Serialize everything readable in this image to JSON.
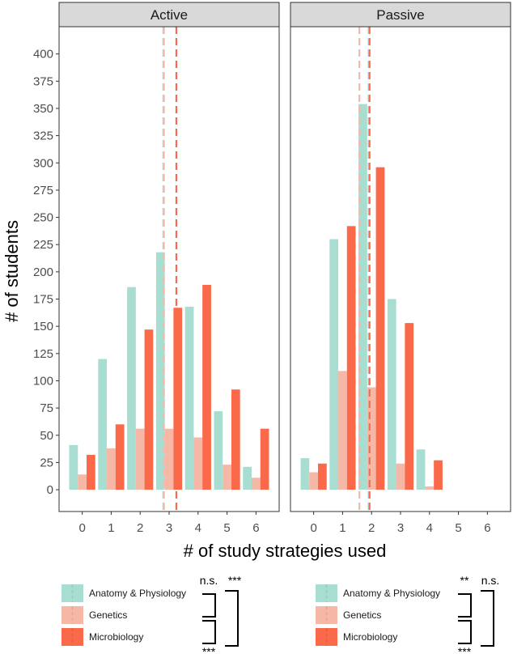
{
  "chart_data": {
    "type": "bar",
    "ylabel": "# of students",
    "xlabel": "# of study strategies used",
    "ylim": [
      -20,
      425
    ],
    "yticks": [
      0,
      25,
      50,
      75,
      100,
      125,
      150,
      175,
      200,
      225,
      250,
      275,
      300,
      325,
      350,
      375,
      400
    ],
    "xticks": [
      0,
      1,
      2,
      3,
      4,
      5,
      6
    ],
    "xlim": [
      -0.8,
      6.8
    ],
    "grid": false,
    "colors": {
      "Anatomy & Physiology": "#A8DDD1",
      "Genetics": "#F6B8A6",
      "Microbiology": "#F9694A"
    },
    "panels": [
      {
        "title": "Active",
        "series": [
          {
            "name": "Anatomy & Physiology",
            "values": [
              41,
              120,
              186,
              218,
              168,
              72,
              21
            ]
          },
          {
            "name": "Genetics",
            "values": [
              14,
              38,
              56,
              56,
              48,
              23,
              11
            ]
          },
          {
            "name": "Microbiology",
            "values": [
              32,
              60,
              147,
              167,
              188,
              92,
              56
            ]
          }
        ],
        "mean_lines": [
          {
            "name": "Anatomy & Physiology",
            "x": 2.8
          },
          {
            "name": "Genetics",
            "x": 2.82
          },
          {
            "name": "Microbiology",
            "x": 3.25
          }
        ]
      },
      {
        "title": "Passive",
        "series": [
          {
            "name": "Anatomy & Physiology",
            "values": [
              29,
              230,
              354,
              175,
              37,
              0,
              0
            ]
          },
          {
            "name": "Genetics",
            "values": [
              16,
              109,
              94,
              24,
              3,
              0,
              0
            ]
          },
          {
            "name": "Microbiology",
            "values": [
              24,
              242,
              296,
              153,
              27,
              0,
              0
            ]
          }
        ],
        "mean_lines": [
          {
            "name": "Anatomy & Physiology",
            "x": 1.9
          },
          {
            "name": "Genetics",
            "x": 1.58
          },
          {
            "name": "Microbiology",
            "x": 1.93
          }
        ]
      }
    ],
    "legends": [
      {
        "items": [
          "Anatomy & Physiology",
          "Genetics",
          "Microbiology"
        ],
        "sig": {
          "ap_gen": "n.s.",
          "ap_mic": "***",
          "gen_mic": "***"
        }
      },
      {
        "items": [
          "Anatomy & Physiology",
          "Genetics",
          "Microbiology"
        ],
        "sig": {
          "ap_gen": "**",
          "ap_mic": "n.s.",
          "gen_mic": "***"
        }
      }
    ]
  }
}
